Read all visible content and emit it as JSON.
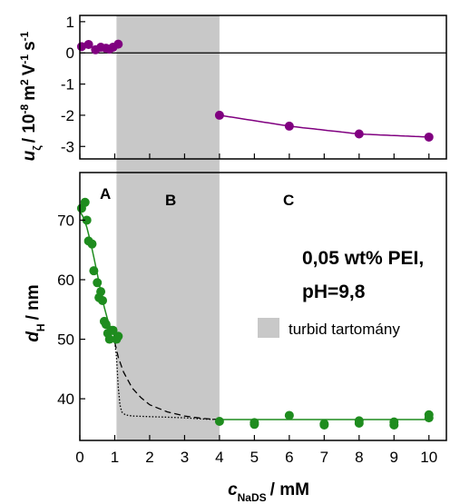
{
  "chart_data": [
    {
      "type": "scatter",
      "panel": "top",
      "ylabel": {
        "symbol": "u",
        "sub": "ζ",
        "unit": "/ 10",
        "exp": "-8",
        "m": "m",
        "m_exp": "2",
        "V": "V",
        "V_exp": "-1",
        "s": "s",
        "s_exp": "-1"
      },
      "xlim": [
        0,
        10.5
      ],
      "ylim": [
        -3.4,
        1.2
      ],
      "yticks": [
        "1",
        "0",
        "-1",
        "-2",
        "-3"
      ],
      "reference_line_y": 0,
      "color": "#800080",
      "series": [
        {
          "x": [
            0.05,
            0.25,
            0.45,
            0.6,
            0.75,
            0.85,
            0.95,
            1.1
          ],
          "y": [
            0.2,
            0.27,
            0.1,
            0.18,
            0.15,
            0.12,
            0.18,
            0.28
          ],
          "line": false
        },
        {
          "x": [
            4,
            6,
            8,
            10
          ],
          "y": [
            -2.0,
            -2.35,
            -2.6,
            -2.7
          ],
          "line": true
        }
      ]
    },
    {
      "type": "scatter",
      "panel": "bottom",
      "xlabel": {
        "symbol": "c",
        "sub": "NaDS",
        "unit": "/ mM"
      },
      "ylabel": {
        "symbol": "d",
        "sub": "H",
        "unit": "/ nm"
      },
      "xlim": [
        0,
        10.5
      ],
      "ylim": [
        33,
        78
      ],
      "xticks": [
        "0",
        "1",
        "2",
        "3",
        "4",
        "5",
        "6",
        "7",
        "8",
        "9",
        "10"
      ],
      "yticks": [
        "40",
        "50",
        "60",
        "70"
      ],
      "color": "#1e8c1e",
      "points": {
        "x": [
          0.05,
          0.15,
          0.2,
          0.25,
          0.35,
          0.4,
          0.5,
          0.55,
          0.6,
          0.65,
          0.7,
          0.75,
          0.8,
          0.85,
          0.9,
          0.95,
          1.05,
          1.1,
          4,
          5,
          5,
          6,
          7,
          7,
          8,
          8,
          9,
          9,
          10,
          10
        ],
        "y": [
          72,
          73,
          70,
          66.5,
          66,
          61.5,
          59.5,
          57,
          58,
          56.5,
          53,
          52.5,
          51,
          50,
          51.5,
          51.5,
          50,
          50.5,
          36.2,
          36,
          35.7,
          37.2,
          35.6,
          35.8,
          36.3,
          35.9,
          36.1,
          35.6,
          37.3,
          36.8
        ]
      },
      "fit_solid": {
        "x": [
          0,
          0.1,
          0.2,
          0.3,
          0.4,
          0.5,
          0.6,
          0.7,
          0.8,
          0.9,
          1.0,
          1.1
        ],
        "y": [
          71.5,
          70.5,
          68.8,
          66.5,
          63.8,
          61,
          58,
          55.4,
          53.2,
          51.6,
          50.4,
          50
        ]
      },
      "plateau_line": {
        "x": [
          4,
          10
        ],
        "y": [
          36.5,
          36.5
        ]
      },
      "dashed": {
        "x": [
          1.0,
          1.1,
          1.25,
          1.5,
          1.75,
          2.0,
          2.5,
          3.0,
          3.5,
          4.0
        ],
        "y": [
          49.5,
          47,
          44.5,
          41.8,
          40.2,
          39,
          37.8,
          37.1,
          36.7,
          36.5
        ]
      },
      "dotted": {
        "x": [
          1.0,
          1.05,
          1.1,
          1.15,
          1.2,
          1.3,
          1.5,
          2.0,
          2.5,
          3.0,
          3.5,
          4.0
        ],
        "y": [
          49.5,
          47,
          42,
          39,
          37.8,
          37.3,
          37.1,
          37.0,
          36.9,
          36.8,
          36.6,
          36.5
        ]
      },
      "regions": [
        "A",
        "B",
        "C"
      ],
      "annotation_lines": [
        "0,05 wt% PEI,",
        "pH=9,8"
      ],
      "legend": {
        "label": "turbid tartomány",
        "color": "#c8c8c8"
      }
    }
  ],
  "shaded_region": {
    "x": [
      1.05,
      4.0
    ],
    "color": "#c8c8c8"
  }
}
